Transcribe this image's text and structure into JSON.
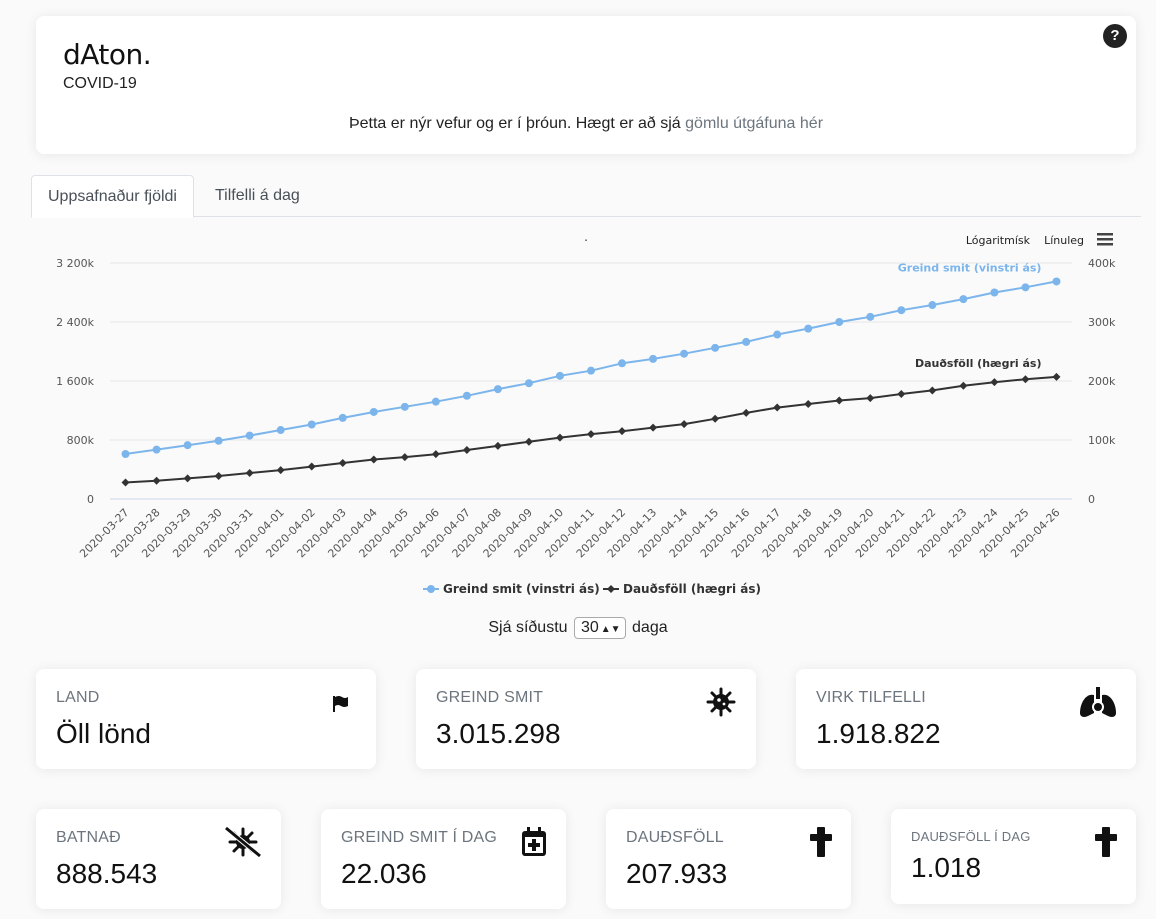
{
  "header": {
    "logo_text": "dAton",
    "logo_dot": ".",
    "subtitle": "COVID-19",
    "notice_text": "Þetta er nýr vefur og er í þróun. Hægt er að sjá ",
    "notice_link": "gömlu útgáfuna hér",
    "help_label": "?"
  },
  "tabs": [
    {
      "label": "Uppsafnaður fjöldi",
      "active": true
    },
    {
      "label": "Tilfelli á dag",
      "active": false
    }
  ],
  "chart_controls": {
    "log_label": "Lógaritmísk",
    "linear_label": "Línuleg",
    "title": "."
  },
  "chart_data": {
    "type": "line",
    "title": ".",
    "categories": [
      "2020-03-27",
      "2020-03-28",
      "2020-03-29",
      "2020-03-30",
      "2020-03-31",
      "2020-04-01",
      "2020-04-02",
      "2020-04-03",
      "2020-04-04",
      "2020-04-05",
      "2020-04-06",
      "2020-04-07",
      "2020-04-08",
      "2020-04-09",
      "2020-04-10",
      "2020-04-11",
      "2020-04-12",
      "2020-04-13",
      "2020-04-14",
      "2020-04-15",
      "2020-04-16",
      "2020-04-17",
      "2020-04-18",
      "2020-04-19",
      "2020-04-20",
      "2020-04-21",
      "2020-04-22",
      "2020-04-23",
      "2020-04-24",
      "2020-04-25",
      "2020-04-26"
    ],
    "left_axis": {
      "min": 0,
      "max": 3200000,
      "ticks": [
        0,
        800000,
        1600000,
        2400000,
        3200000
      ],
      "tick_labels": [
        "0",
        "800k",
        "1 600k",
        "2 400k",
        "3 200k"
      ]
    },
    "right_axis": {
      "min": 0,
      "max": 400000,
      "ticks": [
        0,
        100000,
        200000,
        300000,
        400000
      ],
      "tick_labels": [
        "0",
        "100k",
        "200k",
        "300k",
        "400k"
      ]
    },
    "series": [
      {
        "name": "Greind smit (vinstri ás)",
        "axis": "left",
        "color": "#7cb5ec",
        "marker": "circle",
        "values": [
          610000,
          670000,
          730000,
          790000,
          860000,
          935000,
          1010000,
          1100000,
          1180000,
          1250000,
          1320000,
          1400000,
          1490000,
          1570000,
          1670000,
          1740000,
          1840000,
          1900000,
          1970000,
          2050000,
          2130000,
          2230000,
          2310000,
          2400000,
          2470000,
          2560000,
          2630000,
          2710000,
          2800000,
          2870000,
          2950000
        ]
      },
      {
        "name": "Dauðsföll (hægri ás)",
        "axis": "right",
        "color": "#333333",
        "marker": "diamond",
        "values": [
          28000,
          31000,
          35000,
          39000,
          44000,
          49000,
          55000,
          61000,
          67000,
          71000,
          76000,
          83000,
          90000,
          97000,
          104000,
          110000,
          115000,
          121000,
          127000,
          136000,
          146000,
          155000,
          161000,
          167000,
          171000,
          178000,
          184000,
          192000,
          198000,
          203000,
          207000
        ]
      }
    ]
  },
  "days": {
    "prefix": "Sjá síðustu",
    "value": "30",
    "suffix": "daga"
  },
  "stats": [
    {
      "label": "LAND",
      "value": "Öll lönd",
      "icon": "flag-icon"
    },
    {
      "label": "GREIND SMIT",
      "value": "3.015.298",
      "icon": "virus-icon"
    },
    {
      "label": "VIRK TILFELLI",
      "value": "1.918.822",
      "icon": "lungs-virus-icon"
    },
    {
      "label": "BATNAÐ",
      "value": "888.543",
      "icon": "virus-slash-icon"
    },
    {
      "label": "GREIND SMIT Í DAG",
      "value": "22.036",
      "icon": "calendar-plus-icon"
    },
    {
      "label": "DAUÐSFÖLL",
      "value": "207.933",
      "icon": "cross-icon"
    },
    {
      "label": "DAUÐSFÖLL Í DAG",
      "value": "1.018",
      "icon": "cross-icon"
    }
  ]
}
